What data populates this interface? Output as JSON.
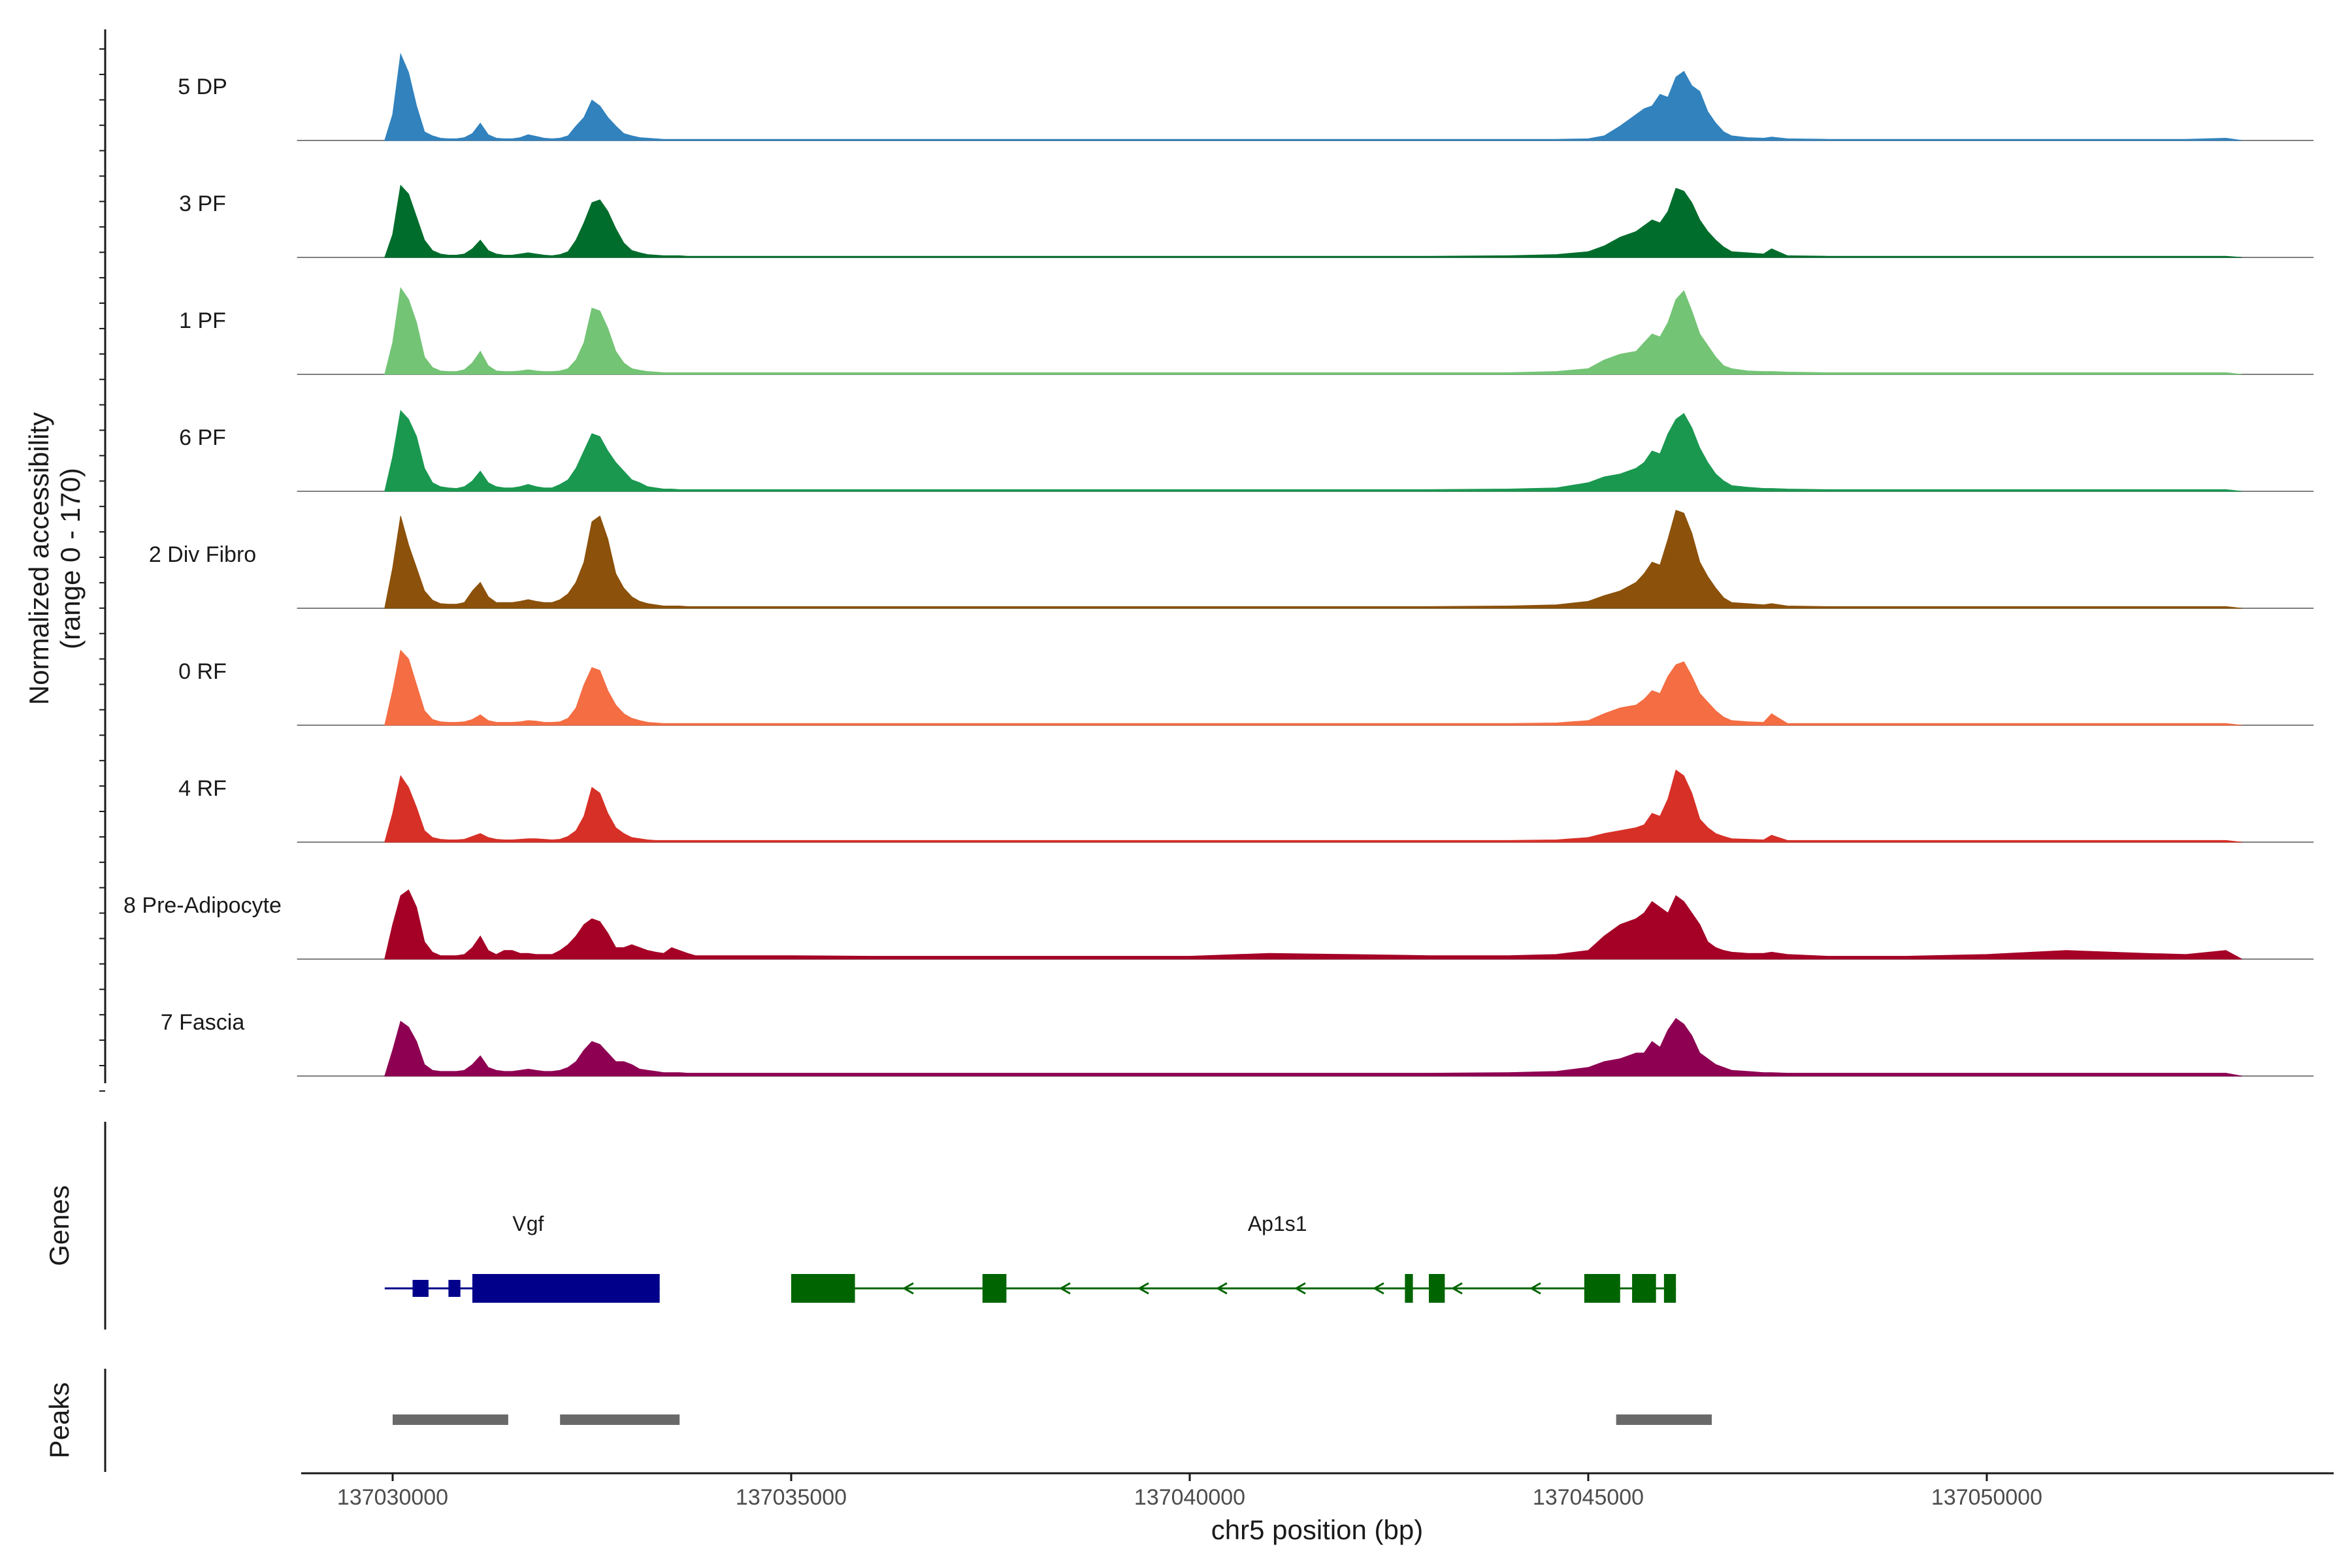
{
  "chart_data": {
    "type": "area",
    "title": "",
    "y_axis_title_line1": "Normalized accessibility",
    "y_axis_title_line2": "(range 0 - 170)",
    "y_range": [
      0,
      170
    ],
    "x_axis_title": "chr5 position (bp)",
    "x_range": [
      137028600,
      137054100
    ],
    "x_ticks": [
      137030000,
      137035000,
      137040000,
      137045000,
      137050000
    ],
    "x_tick_labels": [
      "137030000",
      "137035000",
      "137040000",
      "137045000",
      "137050000"
    ],
    "bin_width": 100,
    "profile_x": [
      137029900,
      137030000,
      137030100,
      137030200,
      137030300,
      137030400,
      137030500,
      137030600,
      137030700,
      137030800,
      137030900,
      137031000,
      137031100,
      137031200,
      137031300,
      137031400,
      137031500,
      137031600,
      137031700,
      137031800,
      137031900,
      137032000,
      137032100,
      137032200,
      137032300,
      137032400,
      137032500,
      137032600,
      137032700,
      137032800,
      137032900,
      137033000,
      137033100,
      137033200,
      137033300,
      137033400,
      137033500,
      137033600,
      137033700,
      137033800,
      137034000,
      137035000,
      137036000,
      137037000,
      137038000,
      137039000,
      137040000,
      137041000,
      137042000,
      137043000,
      137044000,
      137044600,
      137045000,
      137045200,
      137045400,
      137045600,
      137045700,
      137045800,
      137045900,
      137046000,
      137046100,
      137046200,
      137046300,
      137046400,
      137046500,
      137046600,
      137046700,
      137046800,
      137047000,
      137047200,
      137047300,
      137047500,
      137048000,
      137049000,
      137050000,
      137051000,
      137052000,
      137052500,
      137053000,
      137053200
    ],
    "baseline_x_range": [
      137028800,
      137054100
    ],
    "tracks": [
      {
        "name": "5 DP",
        "color": "#3182bd",
        "values": [
          0,
          45,
          150,
          118,
          60,
          15,
          8,
          4,
          3,
          3,
          5,
          12,
          30,
          10,
          4,
          3,
          3,
          5,
          10,
          7,
          4,
          3,
          4,
          8,
          25,
          40,
          70,
          60,
          40,
          25,
          12,
          8,
          5,
          4,
          3,
          2,
          2,
          2,
          2,
          2,
          2,
          2,
          2,
          2,
          2,
          2,
          2,
          2,
          2,
          2,
          2,
          2,
          3,
          8,
          25,
          45,
          55,
          60,
          80,
          75,
          110,
          120,
          95,
          85,
          50,
          30,
          15,
          8,
          5,
          4,
          6,
          3,
          2,
          2,
          2,
          2,
          2,
          2,
          4,
          0
        ]
      },
      {
        "name": "3 PF",
        "color": "#006d2c",
        "values": [
          0,
          40,
          125,
          110,
          70,
          30,
          12,
          6,
          4,
          4,
          6,
          15,
          30,
          12,
          6,
          4,
          4,
          6,
          8,
          6,
          4,
          3,
          5,
          10,
          30,
          60,
          95,
          100,
          80,
          50,
          25,
          12,
          8,
          5,
          4,
          3,
          3,
          3,
          2,
          2,
          2,
          2,
          2,
          2,
          2,
          2,
          2,
          2,
          2,
          2,
          3,
          5,
          10,
          20,
          35,
          45,
          55,
          65,
          60,
          80,
          120,
          115,
          95,
          65,
          45,
          30,
          18,
          10,
          8,
          6,
          15,
          3,
          2,
          2,
          2,
          2,
          2,
          2,
          2,
          0
        ]
      },
      {
        "name": "1 PF",
        "color": "#74c476",
        "values": [
          0,
          55,
          150,
          130,
          90,
          30,
          12,
          6,
          5,
          5,
          8,
          20,
          40,
          15,
          6,
          5,
          5,
          6,
          8,
          6,
          5,
          5,
          6,
          10,
          25,
          55,
          115,
          110,
          80,
          40,
          20,
          10,
          7,
          5,
          4,
          3,
          3,
          3,
          3,
          3,
          3,
          3,
          3,
          3,
          3,
          3,
          3,
          3,
          3,
          3,
          3,
          5,
          10,
          25,
          35,
          40,
          55,
          70,
          65,
          90,
          130,
          145,
          110,
          70,
          50,
          30,
          15,
          10,
          6,
          5,
          5,
          4,
          3,
          3,
          3,
          3,
          3,
          3,
          3,
          0
        ]
      },
      {
        "name": "6 PF",
        "color": "#1a9850",
        "values": [
          0,
          60,
          140,
          125,
          95,
          40,
          15,
          8,
          6,
          5,
          8,
          18,
          35,
          15,
          8,
          6,
          6,
          8,
          12,
          8,
          6,
          6,
          12,
          20,
          40,
          70,
          100,
          95,
          70,
          50,
          35,
          20,
          15,
          8,
          6,
          4,
          4,
          3,
          3,
          3,
          3,
          3,
          3,
          3,
          3,
          3,
          3,
          3,
          3,
          3,
          4,
          6,
          15,
          25,
          30,
          40,
          50,
          70,
          65,
          100,
          125,
          135,
          110,
          75,
          50,
          30,
          18,
          10,
          7,
          5,
          5,
          4,
          3,
          3,
          3,
          3,
          3,
          3,
          3,
          0
        ]
      },
      {
        "name": "2 Div Fibro",
        "color": "#8c510a",
        "values": [
          0,
          70,
          160,
          110,
          70,
          30,
          14,
          8,
          7,
          7,
          10,
          30,
          45,
          20,
          10,
          10,
          10,
          12,
          15,
          12,
          10,
          10,
          15,
          25,
          45,
          80,
          150,
          160,
          120,
          60,
          35,
          20,
          12,
          8,
          6,
          4,
          4,
          4,
          3,
          3,
          3,
          3,
          3,
          3,
          3,
          3,
          3,
          3,
          3,
          3,
          4,
          6,
          12,
          22,
          30,
          45,
          60,
          80,
          75,
          120,
          170,
          165,
          130,
          80,
          55,
          35,
          18,
          10,
          8,
          6,
          8,
          4,
          3,
          3,
          3,
          3,
          3,
          3,
          3,
          0
        ]
      },
      {
        "name": "0 RF",
        "color": "#f46d43",
        "values": [
          0,
          60,
          130,
          115,
          70,
          25,
          10,
          6,
          5,
          5,
          6,
          10,
          18,
          8,
          5,
          5,
          5,
          6,
          8,
          7,
          5,
          5,
          6,
          12,
          30,
          70,
          100,
          95,
          60,
          35,
          20,
          12,
          8,
          5,
          4,
          3,
          3,
          3,
          3,
          3,
          3,
          3,
          3,
          3,
          3,
          3,
          3,
          3,
          3,
          3,
          3,
          4,
          8,
          20,
          30,
          35,
          45,
          60,
          55,
          85,
          105,
          110,
          85,
          55,
          40,
          25,
          14,
          8,
          6,
          5,
          20,
          3,
          3,
          3,
          3,
          3,
          3,
          3,
          3,
          0
        ]
      },
      {
        "name": "4 RF",
        "color": "#d73027",
        "values": [
          0,
          50,
          115,
          95,
          60,
          20,
          8,
          5,
          4,
          4,
          5,
          10,
          15,
          8,
          5,
          4,
          4,
          5,
          6,
          6,
          5,
          4,
          5,
          10,
          20,
          45,
          95,
          85,
          50,
          25,
          15,
          8,
          6,
          4,
          3,
          3,
          3,
          3,
          3,
          3,
          3,
          3,
          3,
          3,
          3,
          3,
          3,
          3,
          3,
          3,
          3,
          4,
          8,
          15,
          20,
          25,
          30,
          50,
          45,
          75,
          125,
          115,
          85,
          40,
          25,
          15,
          10,
          6,
          5,
          4,
          12,
          3,
          3,
          3,
          3,
          3,
          3,
          3,
          3,
          0
        ]
      },
      {
        "name": "8 Pre-Adipocyte",
        "color": "#a50026",
        "values": [
          0,
          60,
          110,
          120,
          90,
          30,
          12,
          6,
          6,
          6,
          8,
          20,
          40,
          15,
          8,
          15,
          15,
          10,
          10,
          8,
          8,
          8,
          15,
          25,
          40,
          60,
          70,
          65,
          45,
          20,
          20,
          25,
          20,
          15,
          12,
          10,
          20,
          15,
          10,
          6,
          6,
          6,
          5,
          5,
          5,
          5,
          5,
          10,
          8,
          6,
          6,
          8,
          15,
          40,
          60,
          70,
          80,
          100,
          90,
          80,
          110,
          100,
          80,
          60,
          30,
          20,
          15,
          12,
          10,
          10,
          12,
          8,
          5,
          5,
          8,
          15,
          10,
          8,
          15,
          0
        ]
      },
      {
        "name": "7 Fascia",
        "color": "#8e0152",
        "values": [
          0,
          45,
          95,
          85,
          60,
          20,
          10,
          8,
          8,
          8,
          10,
          20,
          35,
          15,
          10,
          8,
          8,
          10,
          12,
          10,
          8,
          8,
          10,
          15,
          25,
          45,
          60,
          55,
          40,
          25,
          25,
          20,
          12,
          10,
          8,
          6,
          6,
          6,
          5,
          5,
          5,
          5,
          5,
          5,
          5,
          5,
          5,
          5,
          5,
          5,
          6,
          8,
          15,
          25,
          30,
          40,
          40,
          60,
          50,
          80,
          100,
          90,
          70,
          40,
          30,
          20,
          15,
          10,
          8,
          6,
          6,
          5,
          5,
          5,
          5,
          5,
          5,
          5,
          5,
          0
        ]
      }
    ],
    "genes": [
      {
        "name": "Vgf",
        "strand": "+",
        "color": "#00008b",
        "start": 137029900,
        "end": 137033350,
        "thick_start": 137031000,
        "thick_end": 137033350,
        "exons": [
          [
            137030250,
            137030450
          ],
          [
            137030700,
            137030850
          ],
          [
            137031000,
            137033350
          ]
        ]
      },
      {
        "name": "Ap1s1",
        "strand": "-",
        "color": "#006400",
        "start": 137035000,
        "end": 137046100,
        "thick_start": 137035000,
        "thick_end": 137046100,
        "exons": [
          [
            137035000,
            137035800
          ],
          [
            137037400,
            137037700
          ],
          [
            137042700,
            137042800
          ],
          [
            137043000,
            137043200
          ],
          [
            137044950,
            137045400
          ],
          [
            137045550,
            137045850
          ],
          [
            137045950,
            137046100
          ]
        ]
      }
    ],
    "peaks": [
      [
        137030000,
        137031450
      ],
      [
        137032100,
        137033600
      ],
      [
        137045350,
        137046550
      ]
    ],
    "genes_label": "Genes",
    "peaks_label": "Peaks",
    "peak_color": "#696969"
  }
}
